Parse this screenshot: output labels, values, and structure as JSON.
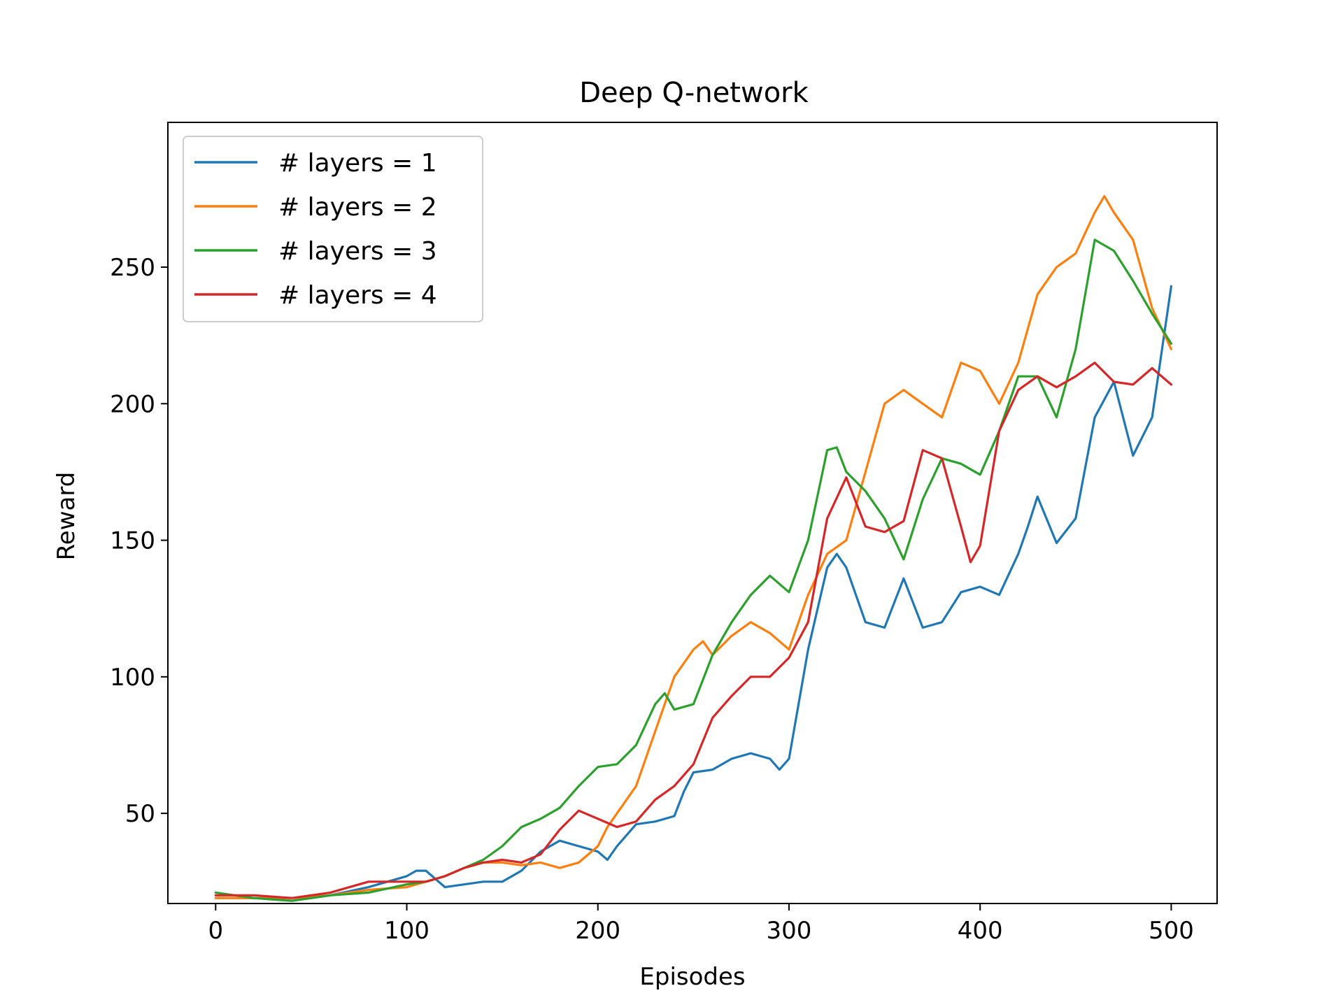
{
  "chart_data": {
    "type": "line",
    "title": "Deep Q-network",
    "xlabel": "Episodes",
    "ylabel": "Reward",
    "xlim": [
      -25,
      524
    ],
    "ylim": [
      17,
      303
    ],
    "xticks": [
      0,
      100,
      200,
      300,
      400,
      500
    ],
    "yticks": [
      50,
      100,
      150,
      200,
      250
    ],
    "grid": false,
    "legend_position": "top-left",
    "series": [
      {
        "name": "# layers = 1",
        "color": "#1f77b4",
        "x": [
          0,
          20,
          40,
          60,
          80,
          100,
          105,
          110,
          120,
          130,
          140,
          150,
          160,
          170,
          180,
          190,
          200,
          205,
          210,
          220,
          230,
          240,
          245,
          250,
          260,
          270,
          280,
          290,
          295,
          300,
          310,
          320,
          325,
          330,
          340,
          350,
          360,
          370,
          380,
          390,
          400,
          410,
          420,
          425,
          430,
          440,
          450,
          460,
          470,
          480,
          490,
          500
        ],
        "y": [
          19,
          19,
          18,
          20,
          23,
          27,
          29,
          29,
          23,
          24,
          25,
          25,
          29,
          36,
          40,
          38,
          36,
          33,
          38,
          46,
          47,
          49,
          58,
          65,
          66,
          70,
          72,
          70,
          66,
          70,
          110,
          140,
          145,
          140,
          120,
          118,
          136,
          118,
          120,
          131,
          133,
          130,
          145,
          155,
          166,
          149,
          158,
          195,
          208,
          181,
          195,
          243
        ]
      },
      {
        "name": "# layers = 2",
        "color": "#ff7f0e",
        "x": [
          0,
          20,
          40,
          60,
          80,
          100,
          110,
          120,
          130,
          140,
          150,
          160,
          170,
          180,
          190,
          200,
          205,
          210,
          220,
          230,
          240,
          250,
          255,
          260,
          270,
          280,
          290,
          300,
          310,
          320,
          330,
          340,
          350,
          360,
          370,
          380,
          390,
          400,
          410,
          420,
          430,
          440,
          450,
          460,
          465,
          470,
          480,
          490,
          500
        ],
        "y": [
          19,
          19,
          19,
          20,
          22,
          23,
          25,
          27,
          30,
          32,
          32,
          31,
          32,
          30,
          32,
          38,
          45,
          50,
          60,
          80,
          100,
          110,
          113,
          108,
          115,
          120,
          116,
          110,
          130,
          145,
          150,
          175,
          200,
          205,
          200,
          195,
          215,
          212,
          200,
          215,
          240,
          250,
          255,
          270,
          276,
          270,
          260,
          235,
          220
        ]
      },
      {
        "name": "# layers = 3",
        "color": "#2ca02c",
        "x": [
          0,
          20,
          40,
          60,
          80,
          100,
          110,
          120,
          130,
          140,
          150,
          160,
          170,
          180,
          190,
          200,
          210,
          220,
          230,
          235,
          240,
          250,
          260,
          270,
          280,
          290,
          300,
          310,
          320,
          325,
          330,
          340,
          350,
          360,
          370,
          380,
          390,
          400,
          410,
          420,
          430,
          440,
          450,
          460,
          470,
          480,
          490,
          500
        ],
        "y": [
          21,
          19,
          18,
          20,
          21,
          24,
          25,
          27,
          30,
          33,
          38,
          45,
          48,
          52,
          60,
          67,
          68,
          75,
          90,
          94,
          88,
          90,
          108,
          120,
          130,
          137,
          131,
          150,
          183,
          184,
          175,
          168,
          158,
          143,
          165,
          180,
          178,
          174,
          190,
          210,
          210,
          195,
          220,
          260,
          256,
          245,
          233,
          222
        ]
      },
      {
        "name": "# layers = 4",
        "color": "#d62728",
        "x": [
          0,
          20,
          40,
          60,
          80,
          100,
          110,
          120,
          130,
          140,
          150,
          160,
          170,
          180,
          190,
          200,
          210,
          220,
          230,
          240,
          250,
          260,
          270,
          280,
          290,
          300,
          310,
          320,
          330,
          340,
          350,
          360,
          370,
          380,
          390,
          395,
          400,
          410,
          420,
          430,
          440,
          450,
          460,
          470,
          480,
          490,
          500
        ],
        "y": [
          20,
          20,
          19,
          21,
          25,
          25,
          25,
          27,
          30,
          32,
          33,
          32,
          35,
          44,
          51,
          48,
          45,
          47,
          55,
          60,
          68,
          85,
          93,
          100,
          100,
          107,
          120,
          158,
          173,
          155,
          153,
          157,
          183,
          180,
          155,
          142,
          148,
          190,
          205,
          210,
          206,
          210,
          215,
          208,
          207,
          213,
          207
        ]
      }
    ]
  }
}
